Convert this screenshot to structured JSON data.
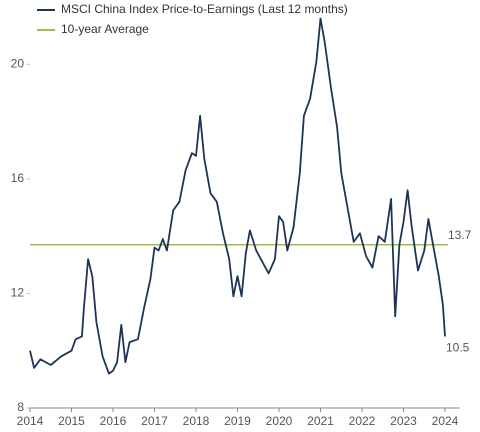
{
  "chart_data": {
    "type": "line",
    "x": [
      2014.0,
      2014.1,
      2014.25,
      2014.5,
      2014.75,
      2015.0,
      2015.1,
      2015.25,
      2015.3,
      2015.4,
      2015.5,
      2015.6,
      2015.75,
      2015.9,
      2016.0,
      2016.1,
      2016.2,
      2016.3,
      2016.4,
      2016.6,
      2016.75,
      2016.9,
      2017.0,
      2017.1,
      2017.2,
      2017.3,
      2017.45,
      2017.6,
      2017.75,
      2017.9,
      2018.0,
      2018.1,
      2018.2,
      2018.35,
      2018.5,
      2018.65,
      2018.8,
      2018.9,
      2019.0,
      2019.1,
      2019.2,
      2019.3,
      2019.45,
      2019.6,
      2019.75,
      2019.9,
      2020.0,
      2020.1,
      2020.2,
      2020.35,
      2020.5,
      2020.6,
      2020.75,
      2020.9,
      2021.0,
      2021.1,
      2021.25,
      2021.4,
      2021.5,
      2021.65,
      2021.8,
      2021.95,
      2022.1,
      2022.25,
      2022.4,
      2022.55,
      2022.7,
      2022.8,
      2022.9,
      2023.0,
      2023.1,
      2023.2,
      2023.35,
      2023.5,
      2023.6,
      2023.75,
      2023.85,
      2023.95,
      2024.0
    ],
    "series": [
      {
        "name": "MSCI China Index Price-to-Earnings (Last 12 months)",
        "color": "#1c3557",
        "values": [
          10.0,
          9.4,
          9.7,
          9.5,
          9.8,
          10.0,
          10.4,
          10.5,
          11.5,
          13.2,
          12.6,
          11.0,
          9.8,
          9.2,
          9.3,
          9.6,
          10.9,
          9.6,
          10.3,
          10.4,
          11.5,
          12.5,
          13.6,
          13.5,
          13.9,
          13.5,
          14.9,
          15.2,
          16.3,
          16.9,
          16.8,
          18.2,
          16.7,
          15.5,
          15.2,
          14.1,
          13.2,
          11.9,
          12.6,
          11.9,
          13.4,
          14.2,
          13.5,
          13.1,
          12.7,
          13.2,
          14.7,
          14.5,
          13.5,
          14.3,
          16.2,
          18.2,
          18.8,
          20.1,
          21.6,
          20.8,
          19.2,
          17.8,
          16.2,
          15.0,
          13.8,
          14.1,
          13.3,
          12.9,
          14.0,
          13.8,
          15.3,
          11.2,
          13.7,
          14.5,
          15.6,
          14.3,
          12.8,
          13.5,
          14.6,
          13.4,
          12.6,
          11.6,
          10.5
        ]
      }
    ],
    "reference_line": {
      "name": "10-year Average",
      "color": "#9bbf4a",
      "value": 13.7
    },
    "xlim": [
      2014,
      2024
    ],
    "xticks": [
      2014,
      2015,
      2016,
      2017,
      2018,
      2019,
      2020,
      2021,
      2022,
      2023,
      2024
    ],
    "ylim": [
      8,
      22
    ],
    "yticks": [
      8,
      12,
      16,
      20
    ],
    "grid": false
  }
}
